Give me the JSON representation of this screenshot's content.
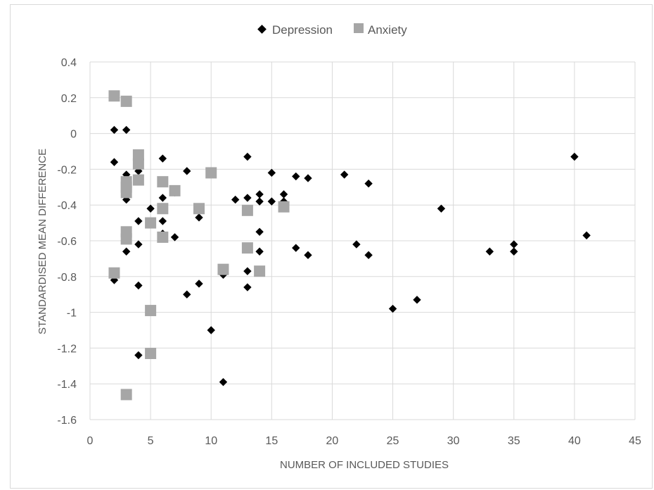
{
  "chart_data": {
    "type": "scatter",
    "xlabel": "NUMBER OF INCLUDED STUDIES",
    "ylabel": "STANDARDISED MEAN DIFFERENCE",
    "xlim": [
      0,
      45
    ],
    "ylim": [
      -1.6,
      0.4
    ],
    "x_ticks": [
      0,
      5,
      10,
      15,
      20,
      25,
      30,
      35,
      40,
      45
    ],
    "y_ticks": [
      0.4,
      0.2,
      0,
      -0.2,
      -0.4,
      -0.6,
      -0.8,
      -1,
      -1.2,
      -1.4,
      -1.6
    ],
    "x_tick_labels": [
      "0",
      "5",
      "10",
      "15",
      "20",
      "25",
      "30",
      "35",
      "40",
      "45"
    ],
    "y_tick_labels": [
      "0.4",
      "0.2",
      "0",
      "-0.2",
      "-0.4",
      "-0.6",
      "-0.8",
      "-1",
      "-1.2",
      "-1.4",
      "-1.6"
    ],
    "grid": true,
    "legend_position": "top",
    "series": [
      {
        "name": "Depression",
        "marker": "diamond",
        "color": "#000000",
        "points": [
          [
            2,
            0.02
          ],
          [
            3,
            0.02
          ],
          [
            2,
            -0.16
          ],
          [
            3,
            -0.23
          ],
          [
            3,
            -0.37
          ],
          [
            3,
            -0.66
          ],
          [
            2,
            -0.82
          ],
          [
            4,
            -0.21
          ],
          [
            4,
            -0.49
          ],
          [
            4,
            -0.62
          ],
          [
            4,
            -0.85
          ],
          [
            4,
            -1.24
          ],
          [
            5,
            -0.42
          ],
          [
            6,
            -0.14
          ],
          [
            6,
            -0.36
          ],
          [
            6,
            -0.49
          ],
          [
            6,
            -0.56
          ],
          [
            6,
            -0.58
          ],
          [
            7,
            -0.33
          ],
          [
            7,
            -0.58
          ],
          [
            8,
            -0.21
          ],
          [
            8,
            -0.9
          ],
          [
            9,
            -0.47
          ],
          [
            9,
            -0.84
          ],
          [
            10,
            -1.1
          ],
          [
            11,
            -0.79
          ],
          [
            11,
            -1.39
          ],
          [
            12,
            -0.37
          ],
          [
            13,
            -0.13
          ],
          [
            13,
            -0.36
          ],
          [
            13,
            -0.77
          ],
          [
            13,
            -0.86
          ],
          [
            14,
            -0.34
          ],
          [
            14,
            -0.38
          ],
          [
            14,
            -0.55
          ],
          [
            14,
            -0.66
          ],
          [
            15,
            -0.22
          ],
          [
            15,
            -0.38
          ],
          [
            16,
            -0.34
          ],
          [
            16,
            -0.38
          ],
          [
            17,
            -0.24
          ],
          [
            17,
            -0.64
          ],
          [
            18,
            -0.25
          ],
          [
            18,
            -0.68
          ],
          [
            21,
            -0.23
          ],
          [
            22,
            -0.62
          ],
          [
            23,
            -0.28
          ],
          [
            23,
            -0.68
          ],
          [
            25,
            -0.98
          ],
          [
            27,
            -0.93
          ],
          [
            29,
            -0.42
          ],
          [
            33,
            -0.66
          ],
          [
            35,
            -0.62
          ],
          [
            35,
            -0.66
          ],
          [
            40,
            -0.13
          ],
          [
            41,
            -0.57
          ]
        ]
      },
      {
        "name": "Anxiety",
        "marker": "square",
        "color": "#a6a6a6",
        "points": [
          [
            2,
            0.21
          ],
          [
            3,
            0.18
          ],
          [
            2,
            -0.78
          ],
          [
            3,
            -0.27
          ],
          [
            3,
            -0.3
          ],
          [
            3,
            -0.33
          ],
          [
            3,
            -0.55
          ],
          [
            3,
            -0.59
          ],
          [
            3,
            -1.46
          ],
          [
            4,
            -0.12
          ],
          [
            4,
            -0.17
          ],
          [
            4,
            -0.26
          ],
          [
            5,
            -0.5
          ],
          [
            5,
            -0.99
          ],
          [
            5,
            -1.23
          ],
          [
            6,
            -0.27
          ],
          [
            6,
            -0.42
          ],
          [
            6,
            -0.58
          ],
          [
            7,
            -0.32
          ],
          [
            9,
            -0.42
          ],
          [
            10,
            -0.22
          ],
          [
            11,
            -0.76
          ],
          [
            13,
            -0.43
          ],
          [
            13,
            -0.64
          ],
          [
            14,
            -0.77
          ],
          [
            16,
            -0.41
          ]
        ]
      }
    ]
  }
}
